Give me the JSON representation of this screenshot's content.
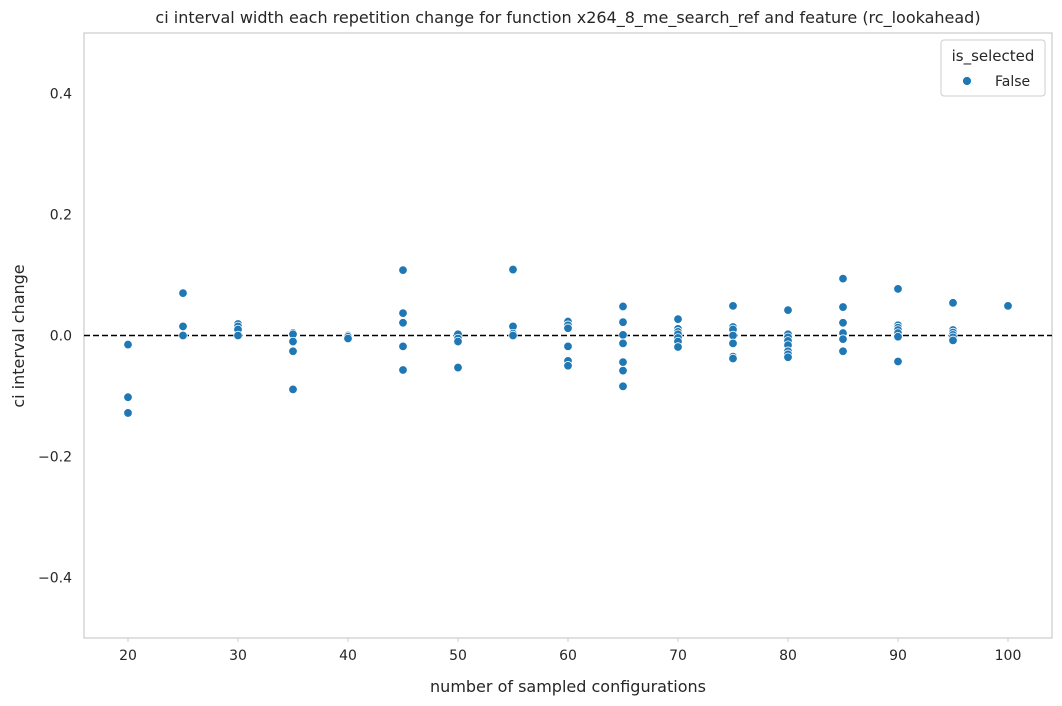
{
  "chart_data": {
    "type": "scatter",
    "title": "ci interval width each repetition change for function x264_8_me_search_ref and feature (rc_lookahead)",
    "xlabel": "number of sampled configurations",
    "ylabel": "ci interval change",
    "xlim": [
      16,
      104
    ],
    "ylim": [
      -0.5,
      0.5
    ],
    "x_ticks": [
      20,
      30,
      40,
      50,
      60,
      70,
      80,
      90,
      100
    ],
    "x_tick_labels": [
      "20",
      "30",
      "40",
      "50",
      "60",
      "70",
      "80",
      "90",
      "100"
    ],
    "y_ticks": [
      -0.4,
      -0.2,
      0.0,
      0.2,
      0.4
    ],
    "y_tick_labels": [
      "−0.4",
      "−0.2",
      "0.0",
      "0.2",
      "0.4"
    ],
    "reference_line": {
      "y": 0.0,
      "style": "dashed",
      "color": "#000000"
    },
    "grid": false,
    "legend": {
      "title": "is_selected",
      "placement": "top-right"
    },
    "series": [
      {
        "name": "False",
        "color": "#1f77b4",
        "points": [
          [
            20,
            -0.015
          ],
          [
            20,
            -0.102
          ],
          [
            20,
            -0.128
          ],
          [
            25,
            0.07
          ],
          [
            25,
            0.015
          ],
          [
            25,
            0.0
          ],
          [
            30,
            0.019
          ],
          [
            30,
            0.015
          ],
          [
            30,
            0.01
          ],
          [
            30,
            0.0
          ],
          [
            35,
            0.004
          ],
          [
            35,
            0.002
          ],
          [
            35,
            -0.01
          ],
          [
            35,
            -0.026
          ],
          [
            35,
            -0.089
          ],
          [
            40,
            0.0
          ],
          [
            40,
            -0.002
          ],
          [
            40,
            -0.005
          ],
          [
            45,
            0.108
          ],
          [
            45,
            0.037
          ],
          [
            45,
            0.021
          ],
          [
            45,
            -0.018
          ],
          [
            45,
            -0.057
          ],
          [
            50,
            0.002
          ],
          [
            50,
            -0.005
          ],
          [
            50,
            -0.01
          ],
          [
            50,
            -0.053
          ],
          [
            55,
            0.109
          ],
          [
            55,
            0.015
          ],
          [
            55,
            0.003
          ],
          [
            55,
            0.0
          ],
          [
            60,
            0.023
          ],
          [
            60,
            0.017
          ],
          [
            60,
            0.012
          ],
          [
            60,
            -0.018
          ],
          [
            60,
            -0.042
          ],
          [
            60,
            -0.05
          ],
          [
            65,
            0.048
          ],
          [
            65,
            0.022
          ],
          [
            65,
            0.001
          ],
          [
            65,
            -0.013
          ],
          [
            65,
            -0.044
          ],
          [
            65,
            -0.058
          ],
          [
            65,
            -0.084
          ],
          [
            70,
            0.027
          ],
          [
            70,
            0.011
          ],
          [
            70,
            0.006
          ],
          [
            70,
            0.002
          ],
          [
            70,
            -0.004
          ],
          [
            70,
            -0.01
          ],
          [
            70,
            -0.019
          ],
          [
            75,
            0.049
          ],
          [
            75,
            0.014
          ],
          [
            75,
            0.01
          ],
          [
            75,
            0.0
          ],
          [
            75,
            -0.013
          ],
          [
            75,
            -0.035
          ],
          [
            75,
            -0.038
          ],
          [
            80,
            0.042
          ],
          [
            80,
            0.002
          ],
          [
            80,
            -0.003
          ],
          [
            80,
            -0.009
          ],
          [
            80,
            -0.016
          ],
          [
            80,
            -0.026
          ],
          [
            80,
            -0.031
          ],
          [
            80,
            -0.036
          ],
          [
            85,
            0.094
          ],
          [
            85,
            0.047
          ],
          [
            85,
            0.021
          ],
          [
            85,
            0.004
          ],
          [
            85,
            -0.006
          ],
          [
            85,
            -0.026
          ],
          [
            90,
            0.077
          ],
          [
            90,
            0.017
          ],
          [
            90,
            0.013
          ],
          [
            90,
            0.009
          ],
          [
            90,
            0.004
          ],
          [
            90,
            -0.002
          ],
          [
            90,
            -0.043
          ],
          [
            95,
            0.054
          ],
          [
            95,
            0.009
          ],
          [
            95,
            0.005
          ],
          [
            95,
            0.001
          ],
          [
            95,
            -0.003
          ],
          [
            95,
            -0.008
          ],
          [
            100,
            0.049
          ]
        ]
      }
    ]
  }
}
